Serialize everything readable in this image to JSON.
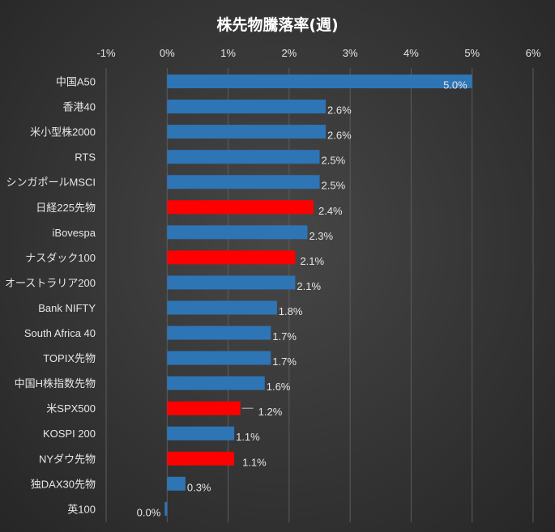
{
  "chart_data": {
    "type": "bar",
    "orientation": "horizontal",
    "title": "株先物騰落率(週)",
    "xlim": [
      -1,
      6
    ],
    "x_ticks": [
      -1,
      0,
      1,
      2,
      3,
      4,
      5,
      6
    ],
    "x_tick_labels": [
      "-1%",
      "0%",
      "1%",
      "2%",
      "3%",
      "4%",
      "5%",
      "6%"
    ],
    "grid": true,
    "categories": [
      "中国A50",
      "香港40",
      "米小型株2000",
      "RTS",
      "シンガポールMSCI",
      "日経225先物",
      "iBovespa",
      "ナスダック100",
      "オーストラリア200",
      "Bank NIFTY",
      "South Africa 40",
      "TOPIX先物",
      "中国H株指数先物",
      "米SPX500",
      "KOSPI 200",
      "NYダウ先物",
      "独DAX30先物",
      "英100"
    ],
    "values": [
      5.0,
      2.6,
      2.6,
      2.5,
      2.5,
      2.4,
      2.3,
      2.1,
      2.1,
      1.8,
      1.7,
      1.7,
      1.6,
      1.2,
      1.1,
      1.1,
      0.3,
      0.0
    ],
    "data_labels": [
      "5.0%",
      "2.6%",
      "2.6%",
      "2.5%",
      "2.5%",
      "2.4%",
      "2.3%",
      "2.1%",
      "2.1%",
      "1.8%",
      "1.7%",
      "1.7%",
      "1.6%",
      "1.2%",
      "1.1%",
      "1.1%",
      "0.3%",
      "0.0%"
    ],
    "highlighted": [
      "日経225先物",
      "ナスダック100",
      "米SPX500",
      "NYダウ先物"
    ],
    "colors": {
      "default": "#2e75b6",
      "highlight": "#ff0000"
    }
  }
}
